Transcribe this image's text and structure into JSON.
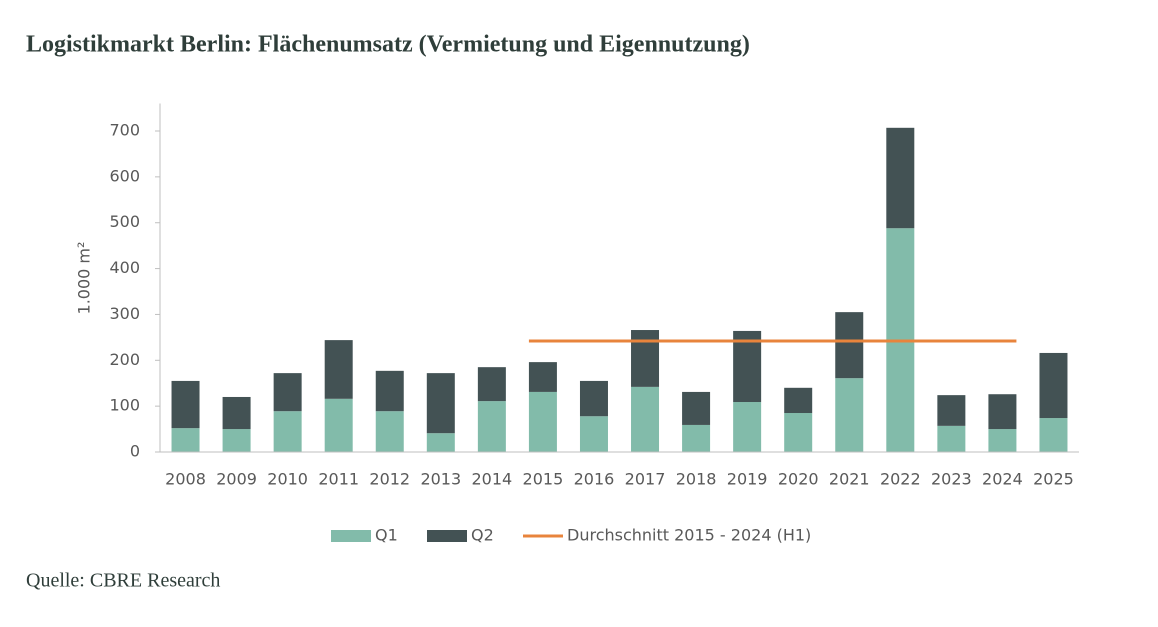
{
  "chart_data": {
    "type": "stacked_bar_line",
    "title": "Logistikmarkt Berlin: Flächenumsatz (Vermietung und Eigennutzung)",
    "y_label": "1.000 m²",
    "source": "Quelle: CBRE Research",
    "categories": [
      "2008",
      "2009",
      "2010",
      "2011",
      "2012",
      "2013",
      "2014",
      "2015",
      "2016",
      "2017",
      "2018",
      "2019",
      "2020",
      "2021",
      "2022",
      "2023",
      "2024",
      "2025"
    ],
    "series": [
      {
        "name": "Q1",
        "color": "#82bbaa",
        "kind": "bar",
        "values": [
          52,
          50,
          89,
          116,
          89,
          41,
          111,
          131,
          78,
          142,
          59,
          109,
          85,
          161,
          488,
          57,
          50,
          74
        ]
      },
      {
        "name": "Q2",
        "color": "#435254",
        "kind": "bar",
        "values": [
          103,
          70,
          83,
          128,
          88,
          131,
          74,
          65,
          77,
          124,
          72,
          155,
          55,
          144,
          219,
          67,
          76,
          142
        ]
      },
      {
        "name": "Durchschnitt 2015 - 2024 (H1)",
        "color": "#e8843c",
        "kind": "line",
        "values": [
          null,
          null,
          null,
          null,
          null,
          null,
          null,
          242,
          242,
          242,
          242,
          242,
          242,
          242,
          242,
          242,
          242,
          null
        ]
      }
    ],
    "ylim": [
      0,
      760
    ],
    "yticks": [
      0,
      100,
      200,
      300,
      400,
      500,
      600,
      700
    ]
  }
}
